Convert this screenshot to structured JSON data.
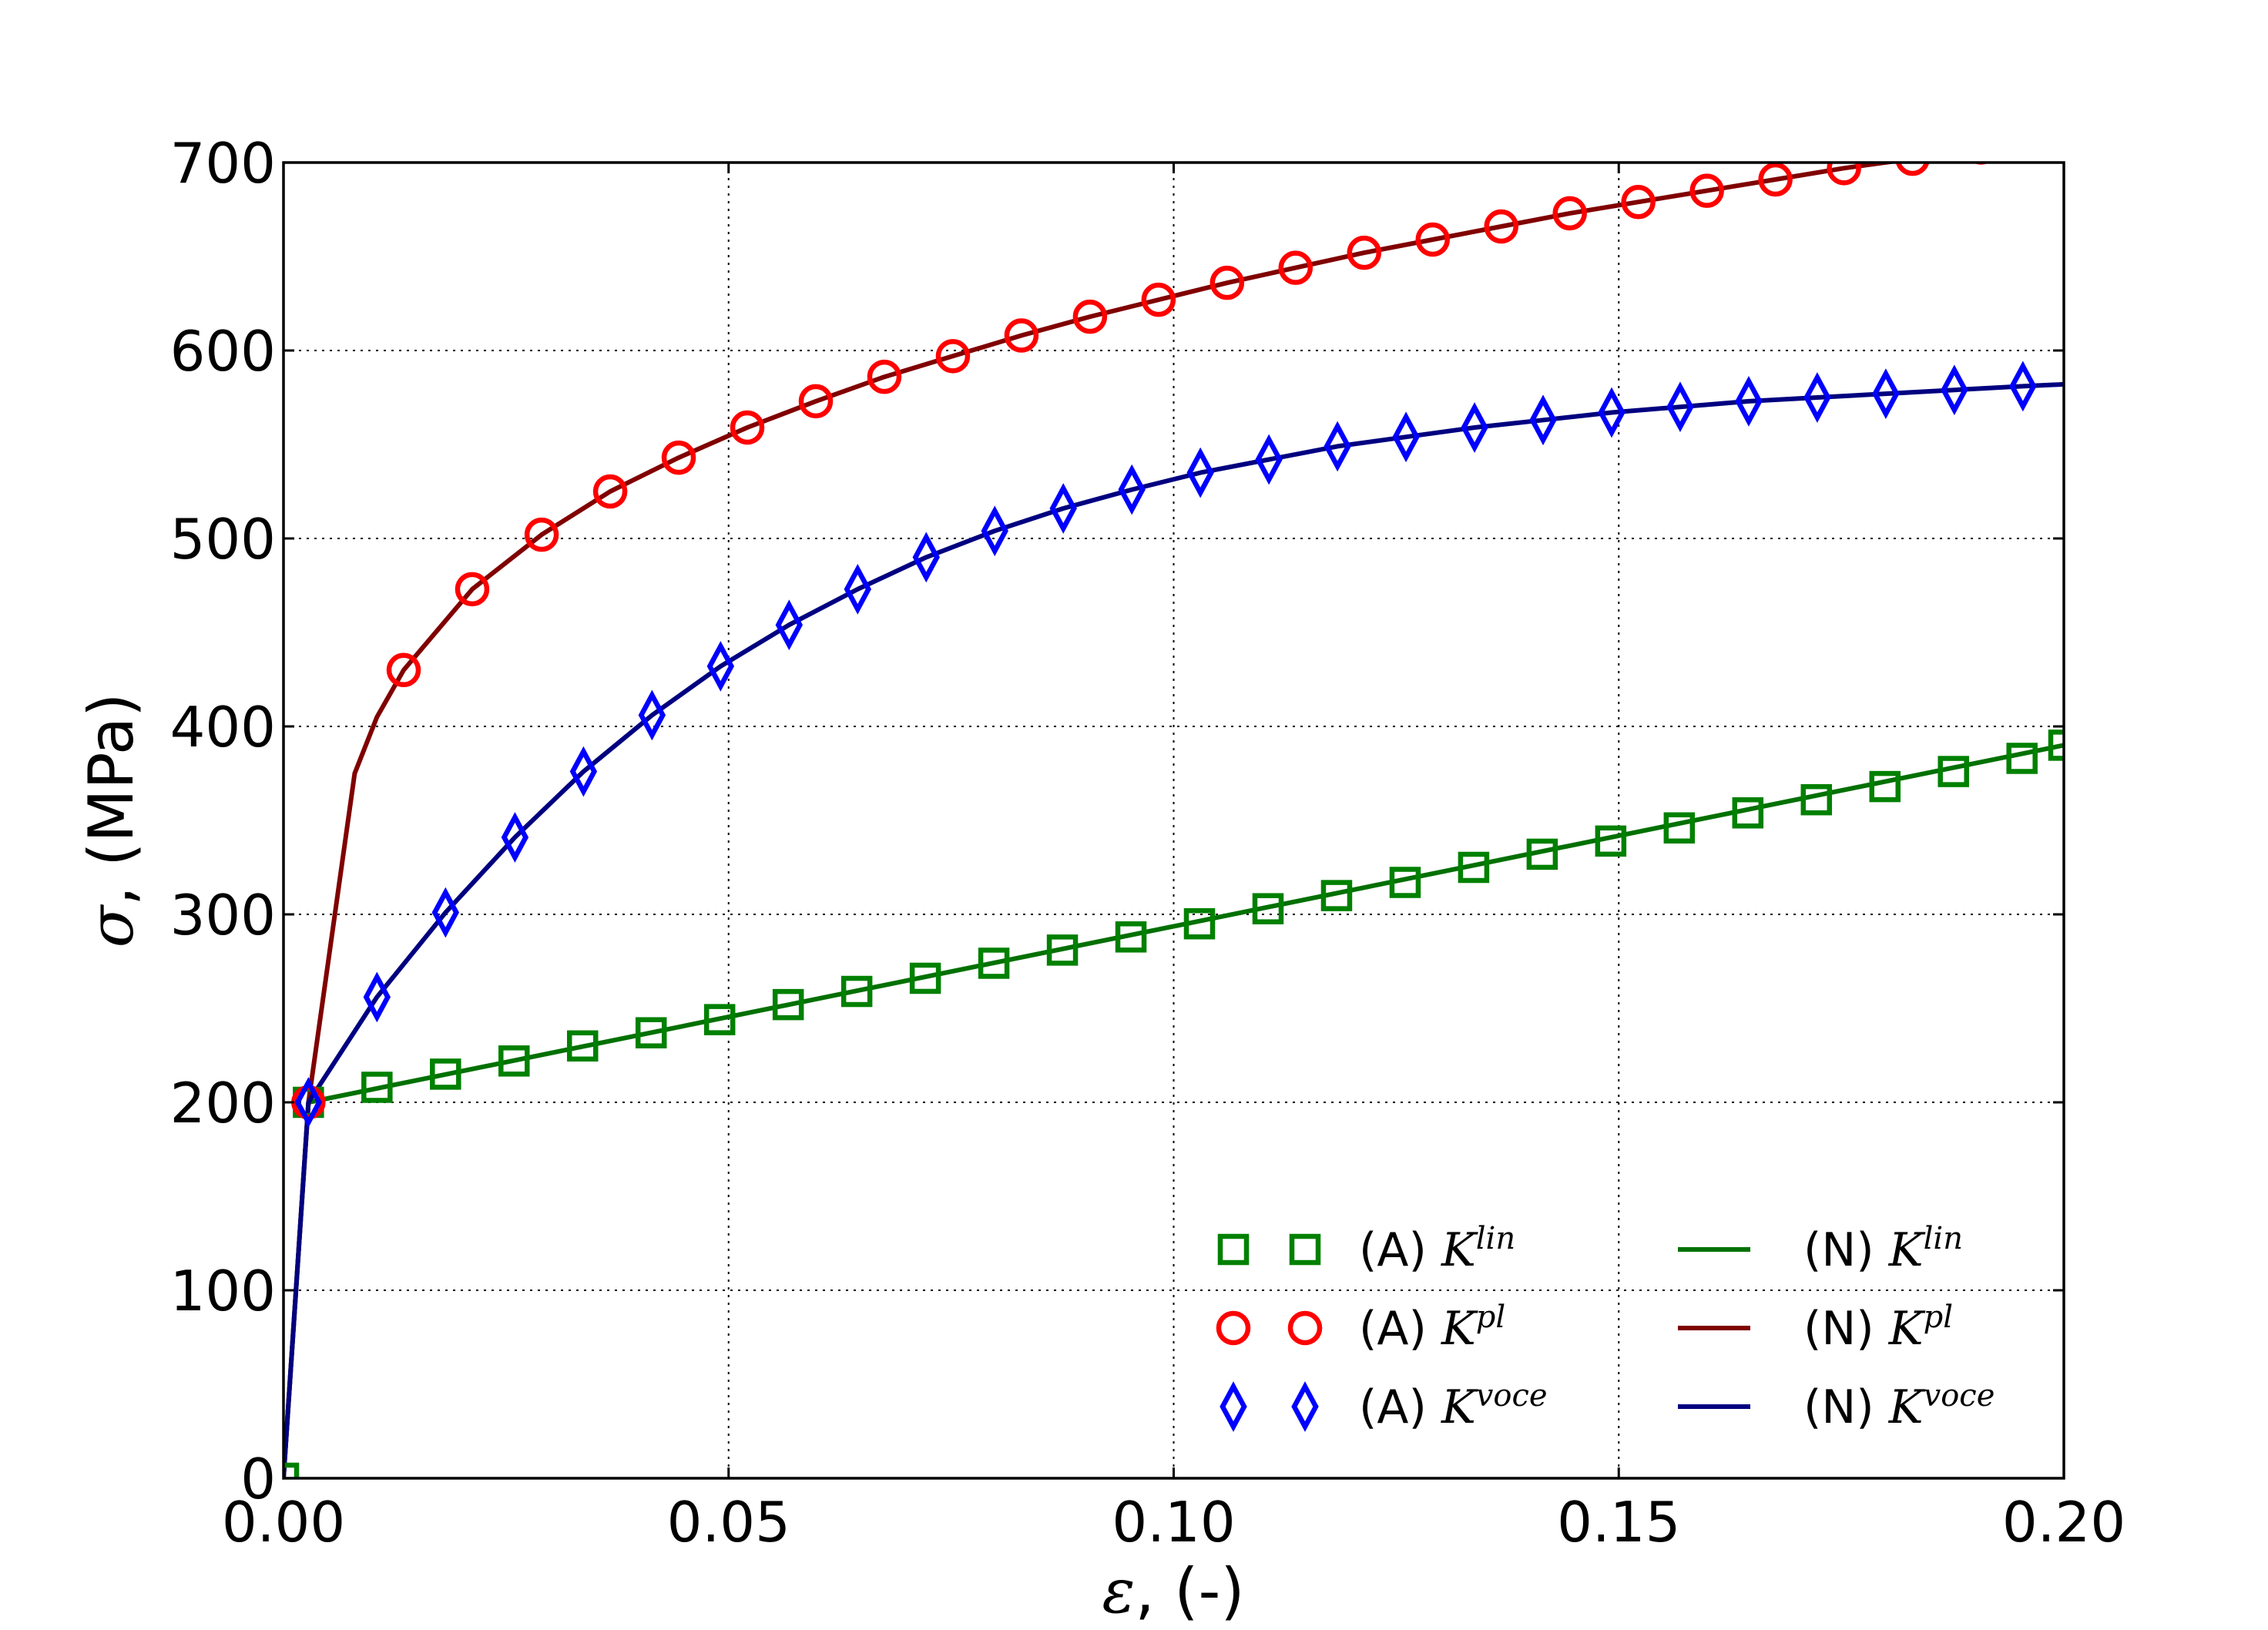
{
  "chart_data": {
    "type": "line",
    "xlabel": {
      "symbol": "ε",
      "text": ", (-)"
    },
    "ylabel": {
      "symbol": "σ",
      "text": ", (MPa)"
    },
    "xlim": [
      0.0,
      0.2
    ],
    "ylim": [
      0,
      700
    ],
    "xticks": [
      0.0,
      0.05,
      0.1,
      0.15,
      0.2
    ],
    "xtick_labels": [
      "0.00",
      "0.05",
      "0.10",
      "0.15",
      "0.20"
    ],
    "yticks": [
      0,
      100,
      200,
      300,
      400,
      500,
      600,
      700
    ],
    "ytick_labels": [
      "0",
      "100",
      "200",
      "300",
      "400",
      "500",
      "600",
      "700"
    ],
    "grid": true,
    "legend_position": "lower-right",
    "series": [
      {
        "name": "(A) K^lin",
        "prefix": "(A) ",
        "base": "K",
        "sup": "lin",
        "style": "marker",
        "marker": "square",
        "color": "#008000",
        "x": [
          0.0,
          0.0028,
          0.0105,
          0.0182,
          0.0259,
          0.0336,
          0.0413,
          0.049,
          0.0567,
          0.0644,
          0.0721,
          0.0798,
          0.0875,
          0.0952,
          0.1029,
          0.1106,
          0.1183,
          0.126,
          0.1337,
          0.1414,
          0.1491,
          0.1568,
          0.1645,
          0.1722,
          0.1799,
          0.1876,
          0.1953,
          0.2
        ],
        "y": [
          0,
          200,
          208,
          215,
          222,
          230,
          237,
          244,
          252,
          259,
          266,
          274,
          281,
          288,
          295,
          303,
          310,
          317,
          325,
          332,
          339,
          346,
          354,
          361,
          368,
          376,
          383,
          390
        ]
      },
      {
        "name": "(A) K^pl",
        "prefix": "(A) ",
        "base": "K",
        "sup": "pl",
        "style": "marker",
        "marker": "circle",
        "color": "#ff0000",
        "x": [
          0.0028,
          0.0135,
          0.0212,
          0.029,
          0.0367,
          0.0444,
          0.0521,
          0.0598,
          0.0675,
          0.0752,
          0.0829,
          0.0906,
          0.0983,
          0.106,
          0.1137,
          0.1214,
          0.1291,
          0.1368,
          0.1445,
          0.1522,
          0.1599,
          0.1676,
          0.1753,
          0.183,
          0.1907
        ],
        "y": [
          200,
          430,
          473,
          502,
          525,
          543,
          559,
          573,
          586,
          597,
          608,
          618,
          627,
          636,
          644,
          652,
          659,
          666,
          673,
          679,
          685,
          691,
          697,
          702,
          708
        ]
      },
      {
        "name": "(A) K^voce",
        "prefix": "(A) ",
        "base": "K",
        "sup": "voce",
        "style": "marker",
        "marker": "diamond",
        "color": "#0000ff",
        "x": [
          0.0028,
          0.0105,
          0.0182,
          0.026,
          0.0337,
          0.0414,
          0.0491,
          0.0568,
          0.0645,
          0.0722,
          0.0799,
          0.0876,
          0.0953,
          0.103,
          0.1107,
          0.1184,
          0.1261,
          0.1338,
          0.1415,
          0.1492,
          0.1569,
          0.1646,
          0.1723,
          0.18,
          0.1877,
          0.1954
        ],
        "y": [
          200,
          256,
          301,
          341,
          376,
          406,
          432,
          454,
          473,
          490,
          504,
          516,
          526,
          535,
          542,
          549,
          554,
          559,
          563,
          567,
          570,
          573,
          575,
          577,
          579,
          581
        ]
      },
      {
        "name": "(N) K^lin",
        "prefix": "(N) ",
        "base": "K",
        "sup": "lin",
        "style": "line",
        "color": "#007000",
        "x": [
          0.0,
          0.0028,
          0.2
        ],
        "y": [
          0,
          200,
          390
        ]
      },
      {
        "name": "(N) K^pl",
        "prefix": "(N) ",
        "base": "K",
        "sup": "pl",
        "style": "line",
        "color": "#800000",
        "x": [
          0.0,
          0.0028,
          0.008,
          0.0105,
          0.0135,
          0.0212,
          0.029,
          0.0367,
          0.0444,
          0.0521,
          0.0598,
          0.0675,
          0.0752,
          0.0829,
          0.0906,
          0.0983,
          0.106,
          0.1137,
          0.1214,
          0.1291,
          0.1368,
          0.1445,
          0.1522,
          0.1599,
          0.1676,
          0.1753,
          0.183,
          0.1907,
          0.2
        ],
        "y": [
          0,
          200,
          375,
          405,
          430,
          473,
          502,
          525,
          543,
          559,
          573,
          586,
          597,
          608,
          618,
          627,
          636,
          644,
          652,
          659,
          666,
          673,
          679,
          685,
          691,
          697,
          702,
          708,
          714
        ]
      },
      {
        "name": "(N) K^voce",
        "prefix": "(N) ",
        "base": "K",
        "sup": "voce",
        "style": "line",
        "color": "#000080",
        "x": [
          0.0,
          0.0028,
          0.0105,
          0.0182,
          0.026,
          0.0337,
          0.0414,
          0.0491,
          0.0568,
          0.0645,
          0.0722,
          0.0799,
          0.0876,
          0.0953,
          0.103,
          0.1107,
          0.1184,
          0.1261,
          0.1338,
          0.1415,
          0.1492,
          0.1569,
          0.1646,
          0.1723,
          0.18,
          0.1877,
          0.1954,
          0.2
        ],
        "y": [
          0,
          200,
          256,
          301,
          341,
          376,
          406,
          432,
          454,
          473,
          490,
          504,
          516,
          526,
          535,
          542,
          549,
          554,
          559,
          563,
          567,
          570,
          573,
          575,
          577,
          579,
          581,
          582
        ]
      }
    ]
  }
}
